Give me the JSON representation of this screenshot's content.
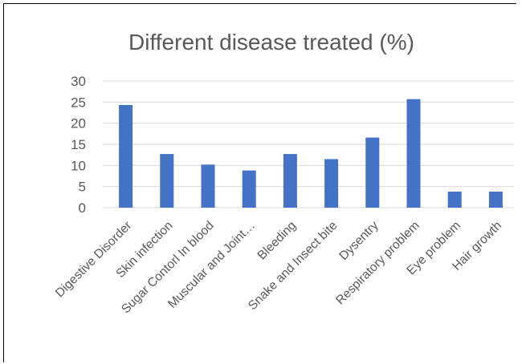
{
  "chart_data": {
    "type": "bar",
    "title": "Different disease treated (%)",
    "xlabel": "",
    "ylabel": "",
    "ylim": [
      0,
      30
    ],
    "yticks": [
      0,
      5,
      10,
      15,
      20,
      25,
      30
    ],
    "grid": true,
    "legend": "none",
    "bar_color": "#4472c4",
    "categories": [
      "Digestive Disorder",
      "Skin infection",
      "Sugar Contorl In blood",
      "Muscular and Joint…",
      "Bleeding",
      "Snake and Insect bite",
      "Dysentry",
      "Respiratory problem",
      "Eye problem",
      "Hair growth"
    ],
    "values": [
      24.3,
      12.7,
      10.2,
      8.8,
      12.7,
      11.5,
      16.6,
      25.7,
      3.8,
      3.8
    ]
  }
}
